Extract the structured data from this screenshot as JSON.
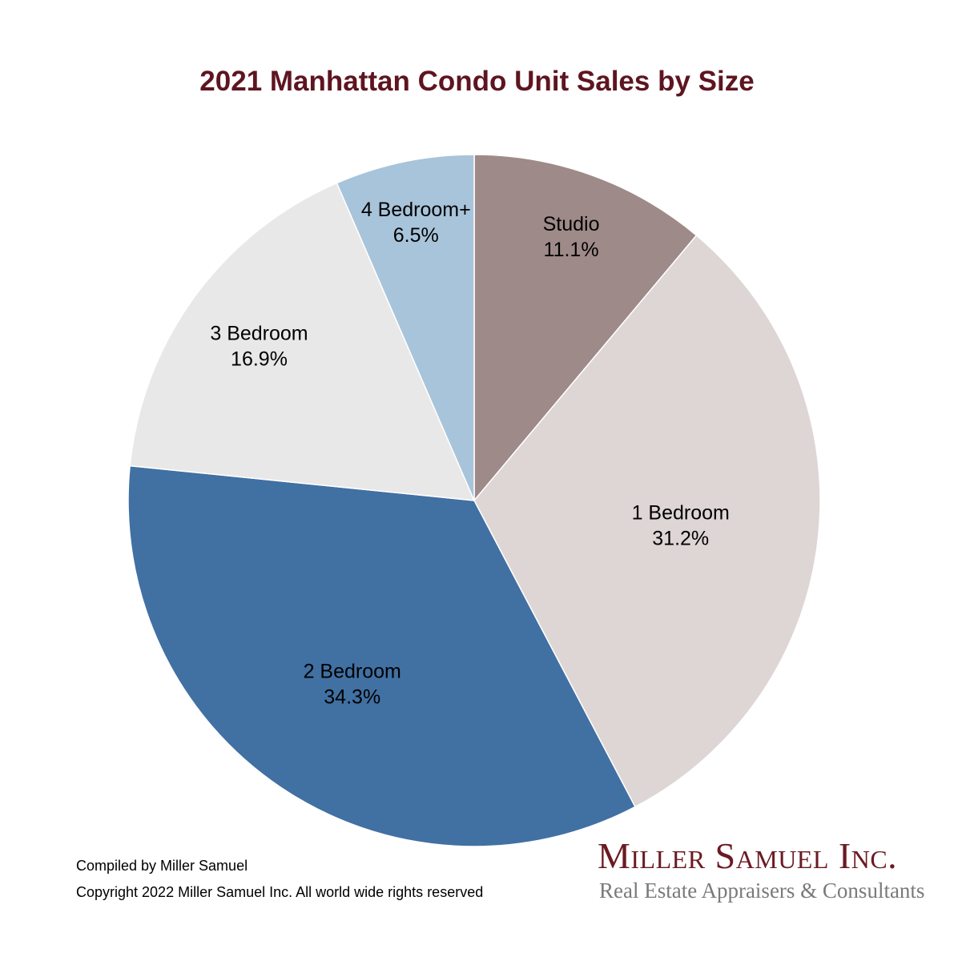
{
  "chart_data": {
    "type": "pie",
    "title": "2021 Manhattan Condo Unit Sales by Size",
    "start": "12 o'clock, clockwise",
    "slices": [
      {
        "label": "Studio",
        "value": 11.1,
        "display": "11.1%",
        "color": "#9e8a88"
      },
      {
        "label": "1 Bedroom",
        "value": 31.2,
        "display": "31.2%",
        "color": "#ded5d5"
      },
      {
        "label": "2 Bedroom",
        "value": 34.3,
        "display": "34.3%",
        "color": "#4170a3"
      },
      {
        "label": "3 Bedroom",
        "value": 16.9,
        "display": "16.9%",
        "color": "#e8e8e8"
      },
      {
        "label": "4 Bedroom+",
        "value": 6.5,
        "display": "6.5%",
        "color": "#a8c4da"
      }
    ]
  },
  "footer": {
    "compiled": "Compiled by Miller Samuel",
    "copyright": "Copyright 2022 Miller Samuel Inc. All world wide rights reserved"
  },
  "logo": {
    "name": "Miller Samuel Inc.",
    "tagline": "Real Estate Appraisers & Consultants"
  }
}
